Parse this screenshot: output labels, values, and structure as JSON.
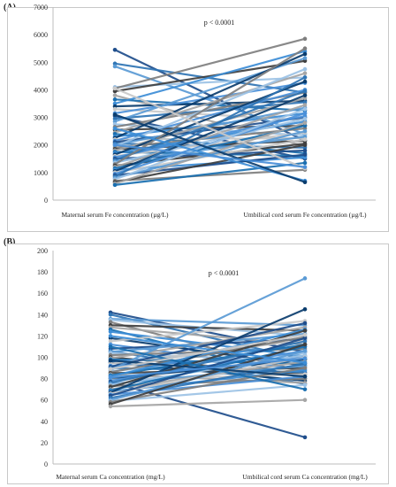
{
  "chart_data": [
    {
      "panel_label": "(A)",
      "type": "line",
      "categories": [
        "Maternal serum Fe concentration (µg/L)",
        "Umbilical cord serum Fe concentration (µg/L)"
      ],
      "ylim": [
        0,
        7000
      ],
      "yticks": [
        0,
        1000,
        2000,
        3000,
        4000,
        5000,
        6000,
        7000
      ],
      "grid": false,
      "annotation": "p < 0.0001",
      "series": [
        {
          "values": [
            5450,
            2150
          ]
        },
        {
          "values": [
            4950,
            3900
          ]
        },
        {
          "values": [
            4850,
            2400
          ]
        },
        {
          "values": [
            4100,
            4450
          ]
        },
        {
          "values": [
            4050,
            5850
          ]
        },
        {
          "values": [
            3950,
            5050
          ]
        },
        {
          "values": [
            3800,
            1950
          ]
        },
        {
          "values": [
            3650,
            3250
          ]
        },
        {
          "values": [
            3500,
            5400
          ]
        },
        {
          "values": [
            3400,
            3600
          ]
        },
        {
          "values": [
            3300,
            2900
          ]
        },
        {
          "values": [
            3150,
            4250
          ]
        },
        {
          "values": [
            3050,
            1500
          ]
        },
        {
          "values": [
            2950,
            3550
          ]
        },
        {
          "values": [
            2850,
            5150
          ]
        },
        {
          "values": [
            2750,
            2350
          ]
        },
        {
          "values": [
            2650,
            3900
          ]
        },
        {
          "values": [
            2550,
            2700
          ]
        },
        {
          "values": [
            2450,
            4600
          ]
        },
        {
          "values": [
            2400,
            1700
          ]
        },
        {
          "values": [
            2300,
            3150
          ]
        },
        {
          "values": [
            2250,
            5300
          ]
        },
        {
          "values": [
            2200,
            2250
          ]
        },
        {
          "values": [
            2150,
            4000
          ]
        },
        {
          "values": [
            2100,
            3000
          ]
        },
        {
          "values": [
            2050,
            1900
          ]
        },
        {
          "values": [
            2000,
            3350
          ]
        },
        {
          "values": [
            1950,
            4750
          ]
        },
        {
          "values": [
            1900,
            2600
          ]
        },
        {
          "values": [
            1850,
            2150
          ]
        },
        {
          "values": [
            1800,
            3700
          ]
        },
        {
          "values": [
            1750,
            1600
          ]
        },
        {
          "values": [
            1700,
            2850
          ]
        },
        {
          "values": [
            1650,
            4300
          ]
        },
        {
          "values": [
            1600,
            2450
          ]
        },
        {
          "values": [
            1550,
            3050
          ]
        },
        {
          "values": [
            1500,
            1800
          ]
        },
        {
          "values": [
            1450,
            3950
          ]
        },
        {
          "values": [
            1400,
            2300
          ]
        },
        {
          "values": [
            1350,
            2950
          ]
        },
        {
          "values": [
            1300,
            5500
          ]
        },
        {
          "values": [
            1250,
            2050
          ]
        },
        {
          "values": [
            1200,
            3450
          ]
        },
        {
          "values": [
            1150,
            2700
          ]
        },
        {
          "values": [
            1100,
            1550
          ]
        },
        {
          "values": [
            1050,
            3800
          ]
        },
        {
          "values": [
            1000,
            2200
          ]
        },
        {
          "values": [
            950,
            3150
          ]
        },
        {
          "values": [
            900,
            1650
          ]
        },
        {
          "values": [
            850,
            4450
          ]
        },
        {
          "values": [
            800,
            2500
          ]
        },
        {
          "values": [
            750,
            3300
          ]
        },
        {
          "values": [
            700,
            1100
          ]
        },
        {
          "values": [
            650,
            2000
          ]
        },
        {
          "values": [
            600,
            2800
          ]
        },
        {
          "values": [
            550,
            1350
          ]
        },
        {
          "values": [
            2600,
            700
          ]
        },
        {
          "values": [
            3100,
            650
          ]
        },
        {
          "values": [
            4050,
            1150
          ]
        },
        {
          "values": [
            2000,
            1200
          ]
        }
      ]
    },
    {
      "panel_label": "(B)",
      "type": "line",
      "categories": [
        "Maternal serum Ca concentration (mg/L)",
        "Umbilical cord serum Ca concentration (mg/L)"
      ],
      "ylim": [
        0,
        200
      ],
      "yticks": [
        0,
        20,
        40,
        60,
        80,
        100,
        120,
        140,
        160,
        180,
        200
      ],
      "grid": false,
      "annotation": "p < 0.0001",
      "series": [
        {
          "values": [
            142,
            105
          ]
        },
        {
          "values": [
            140,
            98
          ]
        },
        {
          "values": [
            136,
            130
          ]
        },
        {
          "values": [
            135,
            120
          ]
        },
        {
          "values": [
            133,
            86
          ]
        },
        {
          "values": [
            130,
            125
          ]
        },
        {
          "values": [
            128,
            112
          ]
        },
        {
          "values": [
            126,
            80
          ]
        },
        {
          "values": [
            124,
            101
          ]
        },
        {
          "values": [
            118,
            92
          ]
        },
        {
          "values": [
            115,
            134
          ]
        },
        {
          "values": [
            112,
            88
          ]
        },
        {
          "values": [
            108,
            117
          ]
        },
        {
          "values": [
            106,
            75
          ]
        },
        {
          "values": [
            105,
            122
          ]
        },
        {
          "values": [
            104,
            96
          ]
        },
        {
          "values": [
            102,
            108
          ]
        },
        {
          "values": [
            100,
            84
          ]
        },
        {
          "values": [
            99,
            128
          ]
        },
        {
          "values": [
            98,
            94
          ]
        },
        {
          "values": [
            96,
            110
          ]
        },
        {
          "values": [
            95,
            78
          ]
        },
        {
          "values": [
            94,
            116
          ]
        },
        {
          "values": [
            92,
            100
          ]
        },
        {
          "values": [
            91,
            132
          ]
        },
        {
          "values": [
            90,
            86
          ]
        },
        {
          "values": [
            88,
            174
          ]
        },
        {
          "values": [
            87,
            104
          ]
        },
        {
          "values": [
            86,
            119
          ]
        },
        {
          "values": [
            85,
            90
          ]
        },
        {
          "values": [
            84,
            76
          ]
        },
        {
          "values": [
            83,
            112
          ]
        },
        {
          "values": [
            82,
            126
          ]
        },
        {
          "values": [
            80,
            98
          ]
        },
        {
          "values": [
            79,
            84
          ]
        },
        {
          "values": [
            78,
            106
          ]
        },
        {
          "values": [
            77,
            25
          ]
        },
        {
          "values": [
            76,
            115
          ]
        },
        {
          "values": [
            75,
            92
          ]
        },
        {
          "values": [
            74,
            102
          ]
        },
        {
          "values": [
            73,
            80
          ]
        },
        {
          "values": [
            72,
            125
          ]
        },
        {
          "values": [
            70,
            96
          ]
        },
        {
          "values": [
            69,
            110
          ]
        },
        {
          "values": [
            68,
            88
          ]
        },
        {
          "values": [
            67,
            145
          ]
        },
        {
          "values": [
            66,
            100
          ]
        },
        {
          "values": [
            65,
            82
          ]
        },
        {
          "values": [
            64,
            118
          ]
        },
        {
          "values": [
            62,
            94
          ]
        },
        {
          "values": [
            60,
            106
          ]
        },
        {
          "values": [
            59,
            74
          ]
        },
        {
          "values": [
            58,
            90
          ]
        },
        {
          "values": [
            56,
            112
          ]
        },
        {
          "values": [
            54,
            60
          ]
        },
        {
          "values": [
            110,
            70
          ]
        },
        {
          "values": [
            120,
            95
          ]
        },
        {
          "values": [
            97,
            82
          ]
        },
        {
          "values": [
            89,
            121
          ]
        },
        {
          "values": [
            81,
            99
          ]
        }
      ]
    }
  ],
  "palette": [
    "#1f4e8c",
    "#2f75b5",
    "#5b9bd5",
    "#9dc3e6",
    "#7f7f7f",
    "#404040",
    "#a6a6a6",
    "#1a6fb0",
    "#3c8dd6",
    "#0b3d6e",
    "#c9c9c9",
    "#4a90d9"
  ]
}
